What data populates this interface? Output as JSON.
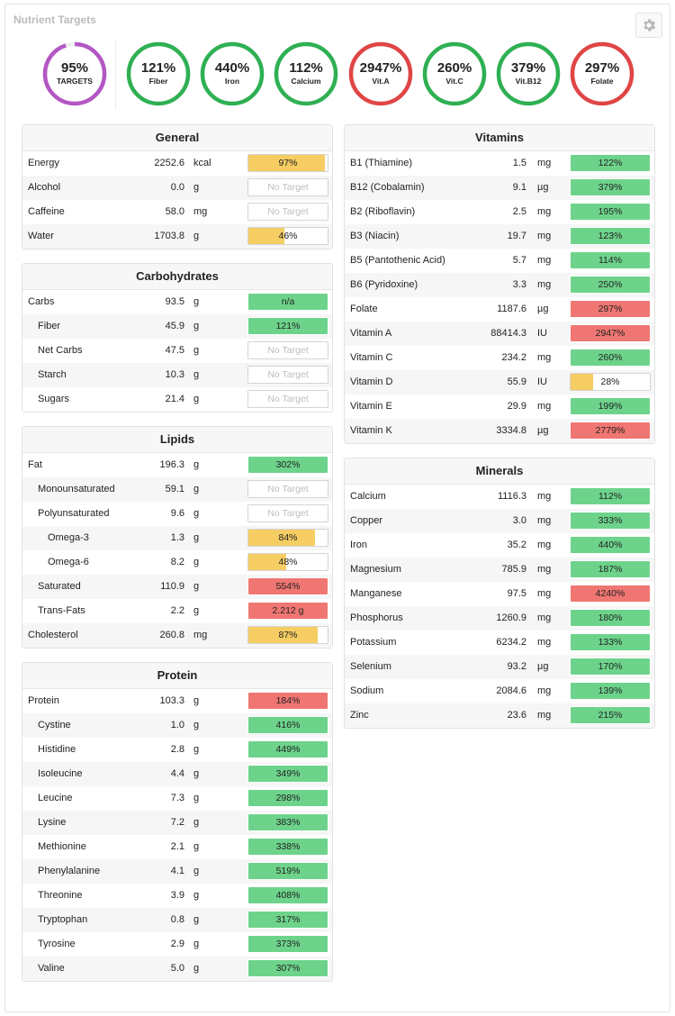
{
  "title": "Nutrient Targets",
  "colors": {
    "green": "#6dd38b",
    "yellow": "#f5cd63",
    "red": "#ef7672",
    "ring_green": "#2fb053",
    "ring_red": "#e04545",
    "ring_purple": "#b357c4"
  },
  "rings": [
    {
      "pct": "95%",
      "label": "TARGETS",
      "color": "purple",
      "progress": 0.95
    },
    {
      "pct": "121%",
      "label": "Fiber",
      "color": "green",
      "progress": 1
    },
    {
      "pct": "440%",
      "label": "Iron",
      "color": "green",
      "progress": 1
    },
    {
      "pct": "112%",
      "label": "Calcium",
      "color": "green",
      "progress": 1
    },
    {
      "pct": "2947%",
      "label": "Vit.A",
      "color": "red",
      "progress": 1
    },
    {
      "pct": "260%",
      "label": "Vit.C",
      "color": "green",
      "progress": 1
    },
    {
      "pct": "379%",
      "label": "Vit.B12",
      "color": "green",
      "progress": 1
    },
    {
      "pct": "297%",
      "label": "Folate",
      "color": "red",
      "progress": 1
    }
  ],
  "panels": {
    "general": {
      "title": "General",
      "rows": [
        {
          "name": "Energy",
          "value": "2252.6",
          "unit": "kcal",
          "bar": "97%",
          "status": "yellow",
          "fill": 0.97
        },
        {
          "name": "Alcohol",
          "value": "0.0",
          "unit": "g",
          "bar": "No Target",
          "status": "none"
        },
        {
          "name": "Caffeine",
          "value": "58.0",
          "unit": "mg",
          "bar": "No Target",
          "status": "none"
        },
        {
          "name": "Water",
          "value": "1703.8",
          "unit": "g",
          "bar": "46%",
          "status": "yellow",
          "fill": 0.46
        }
      ]
    },
    "carbohydrates": {
      "title": "Carbohydrates",
      "rows": [
        {
          "name": "Carbs",
          "value": "93.5",
          "unit": "g",
          "bar": "n/a",
          "status": "green",
          "fill": 1
        },
        {
          "name": "Fiber",
          "value": "45.9",
          "unit": "g",
          "bar": "121%",
          "status": "green",
          "fill": 1,
          "indent": 1
        },
        {
          "name": "Net Carbs",
          "value": "47.5",
          "unit": "g",
          "bar": "No Target",
          "status": "none",
          "indent": 1
        },
        {
          "name": "Starch",
          "value": "10.3",
          "unit": "g",
          "bar": "No Target",
          "status": "none",
          "indent": 1
        },
        {
          "name": "Sugars",
          "value": "21.4",
          "unit": "g",
          "bar": "No Target",
          "status": "none",
          "indent": 1
        }
      ]
    },
    "lipids": {
      "title": "Lipids",
      "rows": [
        {
          "name": "Fat",
          "value": "196.3",
          "unit": "g",
          "bar": "302%",
          "status": "green",
          "fill": 1
        },
        {
          "name": "Monounsaturated",
          "value": "59.1",
          "unit": "g",
          "bar": "No Target",
          "status": "none",
          "indent": 1
        },
        {
          "name": "Polyunsaturated",
          "value": "9.6",
          "unit": "g",
          "bar": "No Target",
          "status": "none",
          "indent": 1
        },
        {
          "name": "Omega-3",
          "value": "1.3",
          "unit": "g",
          "bar": "84%",
          "status": "yellow",
          "fill": 0.84,
          "indent": 2
        },
        {
          "name": "Omega-6",
          "value": "8.2",
          "unit": "g",
          "bar": "48%",
          "status": "yellow",
          "fill": 0.48,
          "indent": 2
        },
        {
          "name": "Saturated",
          "value": "110.9",
          "unit": "g",
          "bar": "554%",
          "status": "red",
          "fill": 1,
          "indent": 1
        },
        {
          "name": "Trans-Fats",
          "value": "2.2",
          "unit": "g",
          "bar": "2.212 g",
          "status": "red",
          "fill": 1,
          "indent": 1
        },
        {
          "name": "Cholesterol",
          "value": "260.8",
          "unit": "mg",
          "bar": "87%",
          "status": "yellow",
          "fill": 0.87
        }
      ]
    },
    "protein": {
      "title": "Protein",
      "rows": [
        {
          "name": "Protein",
          "value": "103.3",
          "unit": "g",
          "bar": "184%",
          "status": "red",
          "fill": 1
        },
        {
          "name": "Cystine",
          "value": "1.0",
          "unit": "g",
          "bar": "416%",
          "status": "green",
          "fill": 1,
          "indent": 1
        },
        {
          "name": "Histidine",
          "value": "2.8",
          "unit": "g",
          "bar": "449%",
          "status": "green",
          "fill": 1,
          "indent": 1
        },
        {
          "name": "Isoleucine",
          "value": "4.4",
          "unit": "g",
          "bar": "349%",
          "status": "green",
          "fill": 1,
          "indent": 1
        },
        {
          "name": "Leucine",
          "value": "7.3",
          "unit": "g",
          "bar": "298%",
          "status": "green",
          "fill": 1,
          "indent": 1
        },
        {
          "name": "Lysine",
          "value": "7.2",
          "unit": "g",
          "bar": "383%",
          "status": "green",
          "fill": 1,
          "indent": 1
        },
        {
          "name": "Methionine",
          "value": "2.1",
          "unit": "g",
          "bar": "338%",
          "status": "green",
          "fill": 1,
          "indent": 1
        },
        {
          "name": "Phenylalanine",
          "value": "4.1",
          "unit": "g",
          "bar": "519%",
          "status": "green",
          "fill": 1,
          "indent": 1
        },
        {
          "name": "Threonine",
          "value": "3.9",
          "unit": "g",
          "bar": "408%",
          "status": "green",
          "fill": 1,
          "indent": 1
        },
        {
          "name": "Tryptophan",
          "value": "0.8",
          "unit": "g",
          "bar": "317%",
          "status": "green",
          "fill": 1,
          "indent": 1
        },
        {
          "name": "Tyrosine",
          "value": "2.9",
          "unit": "g",
          "bar": "373%",
          "status": "green",
          "fill": 1,
          "indent": 1
        },
        {
          "name": "Valine",
          "value": "5.0",
          "unit": "g",
          "bar": "307%",
          "status": "green",
          "fill": 1,
          "indent": 1
        }
      ]
    },
    "vitamins": {
      "title": "Vitamins",
      "rows": [
        {
          "name": "B1 (Thiamine)",
          "value": "1.5",
          "unit": "mg",
          "bar": "122%",
          "status": "green",
          "fill": 1
        },
        {
          "name": "B12 (Cobalamin)",
          "value": "9.1",
          "unit": "µg",
          "bar": "379%",
          "status": "green",
          "fill": 1
        },
        {
          "name": "B2 (Riboflavin)",
          "value": "2.5",
          "unit": "mg",
          "bar": "195%",
          "status": "green",
          "fill": 1
        },
        {
          "name": "B3 (Niacin)",
          "value": "19.7",
          "unit": "mg",
          "bar": "123%",
          "status": "green",
          "fill": 1
        },
        {
          "name": "B5 (Pantothenic Acid)",
          "value": "5.7",
          "unit": "mg",
          "bar": "114%",
          "status": "green",
          "fill": 1
        },
        {
          "name": "B6 (Pyridoxine)",
          "value": "3.3",
          "unit": "mg",
          "bar": "250%",
          "status": "green",
          "fill": 1
        },
        {
          "name": "Folate",
          "value": "1187.6",
          "unit": "µg",
          "bar": "297%",
          "status": "red",
          "fill": 1
        },
        {
          "name": "Vitamin A",
          "value": "88414.3",
          "unit": "IU",
          "bar": "2947%",
          "status": "red",
          "fill": 1
        },
        {
          "name": "Vitamin C",
          "value": "234.2",
          "unit": "mg",
          "bar": "260%",
          "status": "green",
          "fill": 1
        },
        {
          "name": "Vitamin D",
          "value": "55.9",
          "unit": "IU",
          "bar": "28%",
          "status": "yellow",
          "fill": 0.28
        },
        {
          "name": "Vitamin E",
          "value": "29.9",
          "unit": "mg",
          "bar": "199%",
          "status": "green",
          "fill": 1
        },
        {
          "name": "Vitamin K",
          "value": "3334.8",
          "unit": "µg",
          "bar": "2779%",
          "status": "red",
          "fill": 1
        }
      ]
    },
    "minerals": {
      "title": "Minerals",
      "rows": [
        {
          "name": "Calcium",
          "value": "1116.3",
          "unit": "mg",
          "bar": "112%",
          "status": "green",
          "fill": 1
        },
        {
          "name": "Copper",
          "value": "3.0",
          "unit": "mg",
          "bar": "333%",
          "status": "green",
          "fill": 1
        },
        {
          "name": "Iron",
          "value": "35.2",
          "unit": "mg",
          "bar": "440%",
          "status": "green",
          "fill": 1
        },
        {
          "name": "Magnesium",
          "value": "785.9",
          "unit": "mg",
          "bar": "187%",
          "status": "green",
          "fill": 1
        },
        {
          "name": "Manganese",
          "value": "97.5",
          "unit": "mg",
          "bar": "4240%",
          "status": "red",
          "fill": 1
        },
        {
          "name": "Phosphorus",
          "value": "1260.9",
          "unit": "mg",
          "bar": "180%",
          "status": "green",
          "fill": 1
        },
        {
          "name": "Potassium",
          "value": "6234.2",
          "unit": "mg",
          "bar": "133%",
          "status": "green",
          "fill": 1
        },
        {
          "name": "Selenium",
          "value": "93.2",
          "unit": "µg",
          "bar": "170%",
          "status": "green",
          "fill": 1
        },
        {
          "name": "Sodium",
          "value": "2084.6",
          "unit": "mg",
          "bar": "139%",
          "status": "green",
          "fill": 1
        },
        {
          "name": "Zinc",
          "value": "23.6",
          "unit": "mg",
          "bar": "215%",
          "status": "green",
          "fill": 1
        }
      ]
    }
  }
}
